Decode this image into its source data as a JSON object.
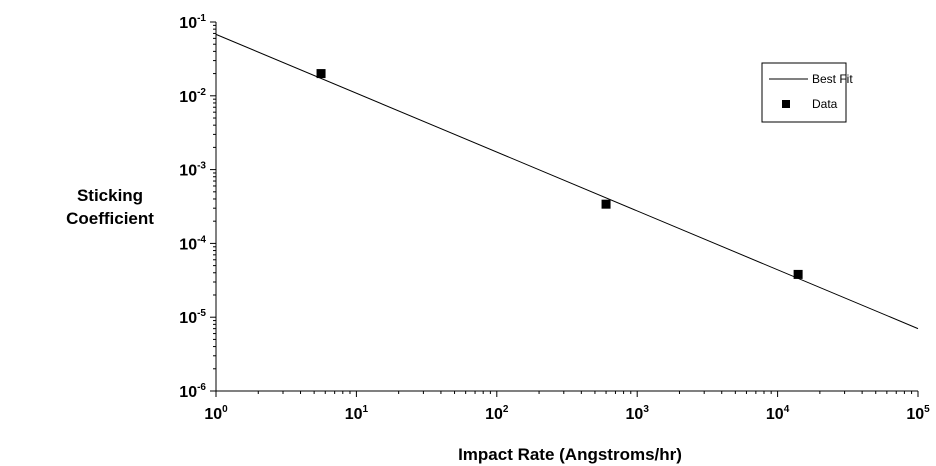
{
  "chart_data": {
    "type": "scatter",
    "title": "",
    "xlabel": "Impact Rate (Angstroms/hr)",
    "ylabel": [
      "Sticking",
      "Coefficient"
    ],
    "x_scale": "log",
    "y_scale": "log",
    "xlim": [
      1,
      100000
    ],
    "ylim": [
      1e-06,
      0.1
    ],
    "x_ticks": [
      {
        "base": "10",
        "exp": "0",
        "value": 1
      },
      {
        "base": "10",
        "exp": "1",
        "value": 10
      },
      {
        "base": "10",
        "exp": "2",
        "value": 100
      },
      {
        "base": "10",
        "exp": "3",
        "value": 1000
      },
      {
        "base": "10",
        "exp": "4",
        "value": 10000
      },
      {
        "base": "10",
        "exp": "5",
        "value": 100000
      }
    ],
    "y_ticks": [
      {
        "base": "10",
        "exp": "-1",
        "value": 0.1
      },
      {
        "base": "10",
        "exp": "-2",
        "value": 0.01
      },
      {
        "base": "10",
        "exp": "-3",
        "value": 0.001
      },
      {
        "base": "10",
        "exp": "-4",
        "value": 0.0001
      },
      {
        "base": "10",
        "exp": "-5",
        "value": 1e-05
      },
      {
        "base": "10",
        "exp": "-6",
        "value": 1e-06
      }
    ],
    "grid": false,
    "legend_position": "top-right",
    "series": [
      {
        "name": "Best Fit",
        "kind": "line",
        "color": "#000000",
        "points": [
          {
            "x": 1,
            "y": 0.068
          },
          {
            "x": 100000,
            "y": 7e-06
          }
        ]
      },
      {
        "name": "Data",
        "kind": "scatter",
        "marker": "square",
        "color": "#000000",
        "points": [
          {
            "x": 5.6,
            "y": 0.02
          },
          {
            "x": 600,
            "y": 0.00034
          },
          {
            "x": 14000,
            "y": 3.8e-05
          }
        ]
      }
    ]
  }
}
